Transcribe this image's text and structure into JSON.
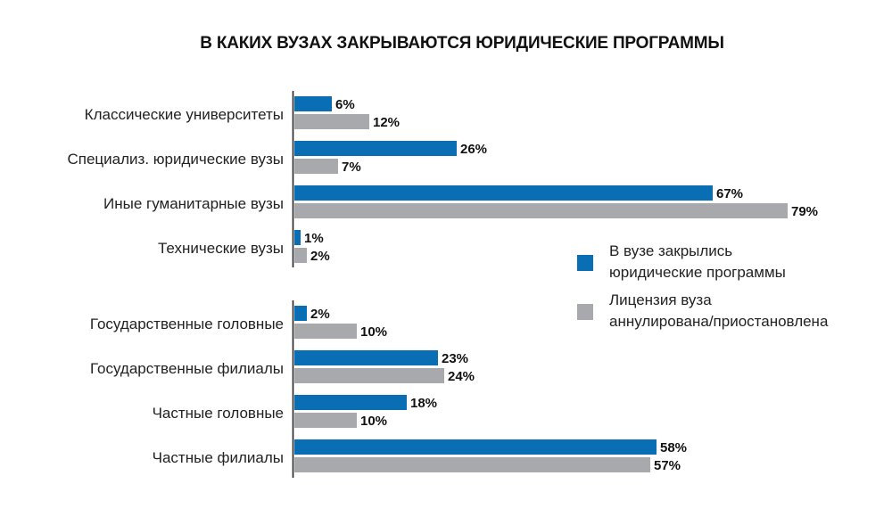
{
  "chart_data": {
    "type": "bar",
    "orientation": "horizontal",
    "title": "В КАКИХ ВУЗАХ ЗАКРЫВАЮТСЯ ЮРИДИЧЕСКИЕ ПРОГРАММЫ",
    "value_suffix": "%",
    "xlim": [
      0,
      80
    ],
    "grid": false,
    "legend_position": "right",
    "colors": {
      "series1": "#0a6eb4",
      "series2": "#a7a9ac"
    },
    "series": [
      {
        "name": "В вузе закрылись юридические программы",
        "name_lines": [
          "В вузе закрылись",
          "юридические программы"
        ]
      },
      {
        "name": "Лицензия вуза аннулирована/приостановлена",
        "name_lines": [
          "Лицензия вуза",
          "аннулирована/приостановлена"
        ]
      }
    ],
    "groups": [
      {
        "categories": [
          "Классические университеты",
          "Специализ. юридические вузы",
          "Иные гуманитарные вузы",
          "Технические вузы"
        ],
        "values": [
          [
            6,
            12
          ],
          [
            26,
            7
          ],
          [
            67,
            79
          ],
          [
            1,
            2
          ]
        ]
      },
      {
        "categories": [
          "Государственные головные",
          "Государственные филиалы",
          "Частные головные",
          "Частные филиалы"
        ],
        "values": [
          [
            2,
            10
          ],
          [
            23,
            24
          ],
          [
            18,
            10
          ],
          [
            58,
            57
          ]
        ]
      }
    ]
  }
}
